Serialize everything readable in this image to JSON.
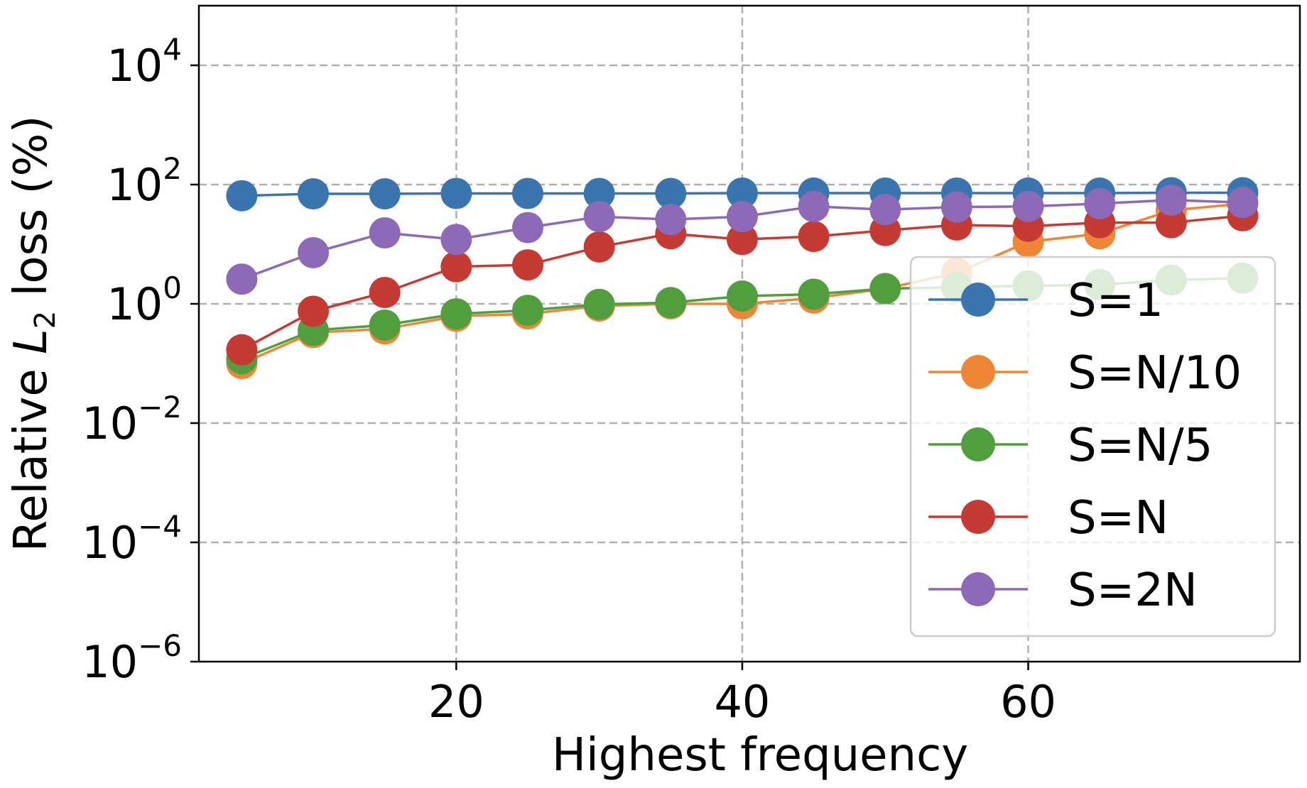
{
  "chart_data": {
    "type": "line",
    "title": "",
    "xlabel": "Highest frequency",
    "ylabel_prefix": "Relative ",
    "ylabel_var": "L",
    "ylabel_sub": "2",
    "ylabel_suffix": " loss (%)",
    "yscale": "log",
    "ylim": [
      1e-06,
      100000
    ],
    "xlim": [
      2,
      79
    ],
    "grid": true,
    "legend_position": "right",
    "x_ticks": [
      {
        "value": 20,
        "label": "20"
      },
      {
        "value": 40,
        "label": "40"
      },
      {
        "value": 60,
        "label": "60"
      }
    ],
    "y_ticks": [
      {
        "value": 10000,
        "base": "10",
        "exp": "4"
      },
      {
        "value": 100,
        "base": "10",
        "exp": "2"
      },
      {
        "value": 1,
        "base": "10",
        "exp": "0"
      },
      {
        "value": 0.01,
        "base": "10",
        "exp": "−2"
      },
      {
        "value": 0.0001,
        "base": "10",
        "exp": "−4"
      },
      {
        "value": 1e-06,
        "base": "10",
        "exp": "−6"
      }
    ],
    "x": [
      5,
      10,
      15,
      20,
      25,
      30,
      35,
      40,
      45,
      50,
      55,
      60,
      65,
      70,
      75
    ],
    "series": [
      {
        "name": "S=1",
        "color": "#3b75af",
        "values": [
          65,
          70,
          70,
          71,
          71,
          71,
          71,
          72,
          72,
          72,
          72,
          72,
          72,
          73,
          73
        ]
      },
      {
        "name": "S=N/10",
        "color": "#ef8636",
        "values": [
          0.1,
          0.33,
          0.38,
          0.62,
          0.68,
          0.92,
          1.0,
          1.0,
          1.25,
          1.8,
          3.3,
          11,
          15,
          37,
          48
        ]
      },
      {
        "name": "S=N/5",
        "color": "#519e3e",
        "values": [
          0.12,
          0.36,
          0.44,
          0.68,
          0.78,
          0.98,
          1.05,
          1.35,
          1.45,
          1.8,
          1.9,
          2.0,
          2.1,
          2.5,
          2.7
        ]
      },
      {
        "name": "S=N",
        "color": "#c53a32",
        "values": [
          0.17,
          0.75,
          1.55,
          4.2,
          4.5,
          9,
          15,
          12,
          13.5,
          17,
          21,
          20,
          23,
          23,
          30
        ]
      },
      {
        "name": "S=2N",
        "color": "#8d69b8",
        "values": [
          2.6,
          7.2,
          15.5,
          12,
          19,
          29,
          26,
          29,
          43,
          38,
          42,
          43,
          48,
          55,
          50
        ]
      }
    ]
  }
}
